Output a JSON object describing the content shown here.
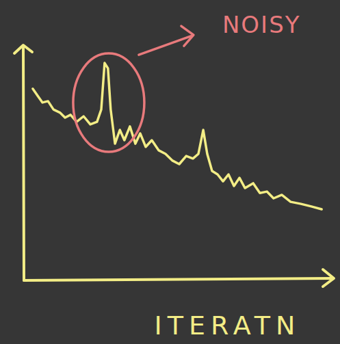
{
  "chart_data": {
    "type": "line",
    "x_label": "ITERATN",
    "annotation": "NOISY",
    "color": "#f3ed86",
    "tick_labels": false,
    "grid": false,
    "xlim": [
      0,
      100
    ],
    "ylim": [
      0,
      100
    ],
    "x": [
      2.9,
      4.5,
      6.1,
      7.9,
      9.7,
      11.9,
      13.5,
      15.3,
      17.3,
      19.6,
      21.8,
      24.0,
      25.4,
      26.5,
      27.6,
      28.5,
      29.9,
      31.5,
      33.0,
      34.8,
      36.6,
      38.2,
      40.0,
      42.0,
      44.3,
      46.5,
      48.8,
      51.0,
      53.3,
      55.5,
      57.3,
      58.9,
      60.2,
      61.8,
      63.6,
      65.4,
      67.2,
      69.0,
      70.8,
      72.6,
      75.3,
      77.5,
      79.8,
      82.0,
      84.7,
      87.6,
      91.0,
      94.4,
      97.8
    ],
    "values": [
      82.4,
      79.4,
      76.5,
      77.1,
      73.5,
      72.1,
      70.0,
      71.2,
      68.2,
      70.6,
      67.1,
      68.2,
      73.5,
      93.5,
      91.2,
      73.5,
      58.8,
      64.7,
      60.3,
      66.2,
      58.8,
      63.2,
      57.4,
      60.3,
      55.9,
      54.4,
      51.5,
      50.0,
      53.5,
      52.4,
      54.4,
      64.7,
      54.4,
      47.1,
      45.6,
      42.6,
      45.6,
      40.6,
      44.1,
      39.7,
      41.8,
      37.6,
      38.2,
      35.3,
      36.8,
      33.8,
      32.9,
      31.8,
      30.6
    ]
  }
}
